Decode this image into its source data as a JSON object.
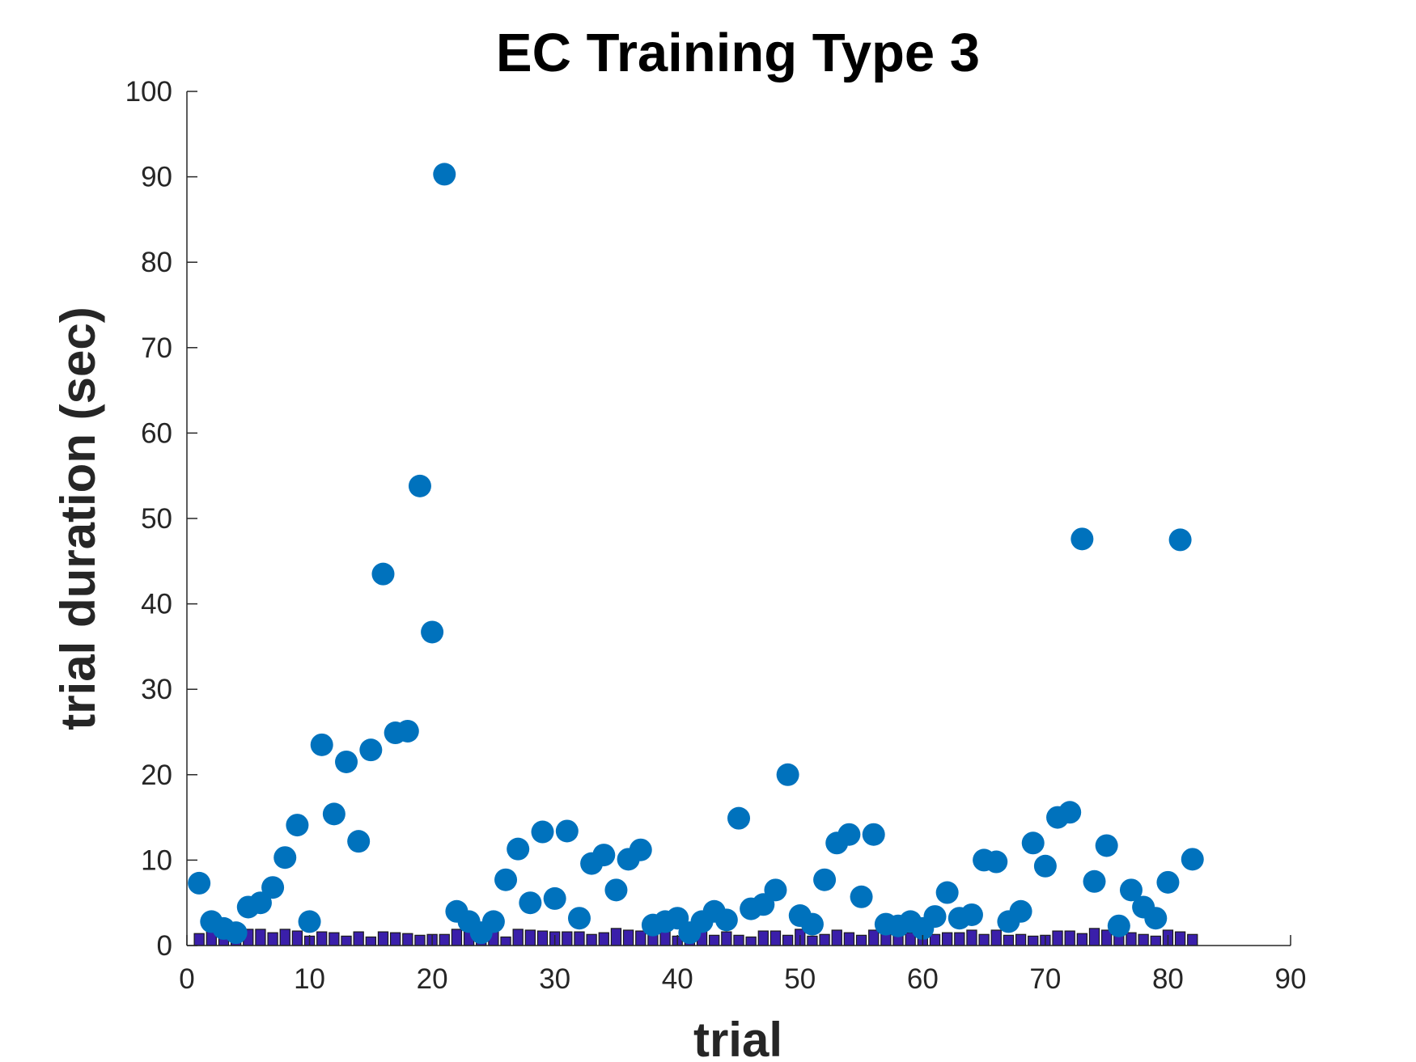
{
  "chart_data": {
    "type": "scatter",
    "title": "EC Training Type 3",
    "xlabel": "trial",
    "ylabel": "trial duration (sec)",
    "xlim": [
      0,
      90
    ],
    "ylim": [
      0,
      100
    ],
    "xticks": [
      0,
      10,
      20,
      30,
      40,
      50,
      60,
      70,
      80,
      90
    ],
    "yticks": [
      0,
      10,
      20,
      30,
      40,
      50,
      60,
      70,
      80,
      90,
      100
    ],
    "grid": false,
    "colors": {
      "scatter": "#0072BD",
      "bar_fill": "#3A1FAA",
      "bar_edge": "#1a1a1a",
      "axis": "#262626"
    },
    "series": [
      {
        "type": "scatter",
        "x": [
          1,
          2,
          3,
          4,
          5,
          6,
          7,
          8,
          9,
          10,
          11,
          12,
          13,
          14,
          15,
          16,
          17,
          18,
          19,
          20,
          21,
          22,
          23,
          24,
          25,
          26,
          27,
          28,
          29,
          30,
          31,
          32,
          33,
          34,
          35,
          36,
          37,
          38,
          39,
          40,
          41,
          42,
          43,
          44,
          45,
          46,
          47,
          48,
          49,
          50,
          51,
          52,
          53,
          54,
          55,
          56,
          57,
          58,
          59,
          60,
          61,
          62,
          63,
          64,
          65,
          66,
          67,
          68,
          69,
          70,
          71,
          72,
          73,
          74,
          75,
          76,
          77,
          78,
          79,
          80,
          81,
          82
        ],
        "values": [
          7.3,
          2.8,
          2.0,
          1.5,
          4.5,
          5.0,
          6.8,
          10.3,
          14.1,
          2.8,
          23.5,
          15.4,
          21.5,
          12.2,
          22.9,
          43.5,
          24.9,
          25.1,
          53.8,
          36.7,
          90.3,
          4.0,
          2.8,
          1.5,
          2.8,
          7.7,
          11.3,
          5.0,
          13.3,
          5.5,
          13.4,
          3.2,
          9.6,
          10.6,
          6.5,
          10.1,
          11.2,
          2.4,
          2.8,
          3.2,
          1.5,
          2.8,
          4.0,
          3.0,
          14.9,
          4.3,
          4.8,
          6.5,
          20.0,
          3.5,
          2.5,
          7.7,
          12.0,
          13.0,
          5.7,
          13.0,
          2.5,
          2.3,
          2.8,
          2.0,
          3.4,
          6.2,
          3.2,
          3.6,
          10.0,
          9.8,
          2.8,
          4.0,
          12.0,
          9.3,
          15.0,
          15.6,
          47.6,
          7.5,
          11.7,
          2.3,
          6.5,
          4.5,
          3.2,
          7.4,
          47.5,
          10.1
        ]
      },
      {
        "type": "bar",
        "x": [
          1,
          2,
          3,
          4,
          5,
          6,
          7,
          8,
          9,
          10,
          11,
          12,
          13,
          14,
          15,
          16,
          17,
          18,
          19,
          20,
          21,
          22,
          23,
          24,
          25,
          26,
          27,
          28,
          29,
          30,
          31,
          32,
          33,
          34,
          35,
          36,
          37,
          38,
          39,
          40,
          41,
          42,
          43,
          44,
          45,
          46,
          47,
          48,
          49,
          50,
          51,
          52,
          53,
          54,
          55,
          56,
          57,
          58,
          59,
          60,
          61,
          62,
          63,
          64,
          65,
          66,
          67,
          68,
          69,
          70,
          71,
          72,
          73,
          74,
          75,
          76,
          77,
          78,
          79,
          80,
          81,
          82
        ],
        "values": [
          1.4,
          1.8,
          1.5,
          1.1,
          1.9,
          1.9,
          1.5,
          1.9,
          1.7,
          1.1,
          1.6,
          1.5,
          1.1,
          1.6,
          1.0,
          1.6,
          1.5,
          1.4,
          1.2,
          1.3,
          1.3,
          1.9,
          1.6,
          1.1,
          1.9,
          1.0,
          1.9,
          1.8,
          1.7,
          1.6,
          1.6,
          1.6,
          1.3,
          1.5,
          2.0,
          1.8,
          1.7,
          1.6,
          1.6,
          1.1,
          1.0,
          2.0,
          1.2,
          1.6,
          1.2,
          1.0,
          1.7,
          1.7,
          1.2,
          1.9,
          1.1,
          1.3,
          1.8,
          1.5,
          1.2,
          1.8,
          1.6,
          1.2,
          1.5,
          1.2,
          1.3,
          1.5,
          1.5,
          1.8,
          1.3,
          1.8,
          1.2,
          1.3,
          1.1,
          1.2,
          1.7,
          1.7,
          1.4,
          2.0,
          1.8,
          1.6,
          1.5,
          1.3,
          1.1,
          1.8,
          1.6,
          1.3
        ]
      }
    ]
  }
}
